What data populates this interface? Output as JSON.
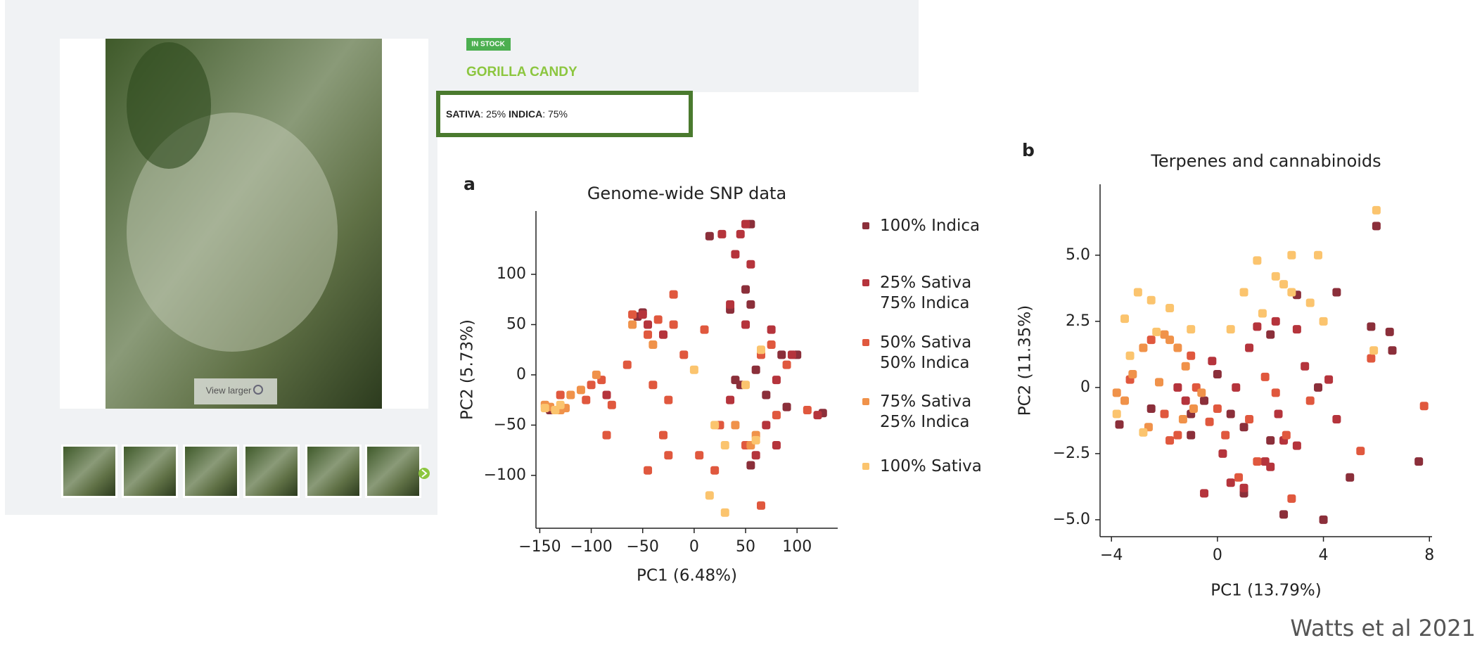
{
  "product": {
    "badge": "IN STOCK",
    "name": "GORILLA CANDY",
    "sativa_label": "SATIVA",
    "sativa_value": ": 25% ",
    "indica_label": "INDICA",
    "indica_value": ": 75%",
    "view_larger": "View larger"
  },
  "credit": "Watts et al 2021",
  "chart_data": [
    {
      "type": "scatter",
      "panel": "a",
      "title": "Genome-wide SNP data",
      "xlabel": "PC1 (6.48%)",
      "ylabel": "PC2 (5.73%)",
      "xlim": [
        -153.7,
        139.5
      ],
      "ylim": [
        -152.6,
        163
      ],
      "xticks": [
        {
          "value": -150,
          "label": "−150"
        },
        {
          "value": -100,
          "label": "−100"
        },
        {
          "value": -50,
          "label": "−50"
        },
        0,
        50,
        100
      ],
      "yticks": [
        {
          "value": -100,
          "label": "−100"
        },
        {
          "value": -50,
          "label": "−50"
        },
        0,
        50,
        100
      ],
      "legend": "right",
      "series": [
        {
          "name": "100% Indica",
          "color": "#8b2f3a",
          "x": [
            55,
            15,
            50,
            35,
            55,
            60,
            45,
            85,
            100,
            125,
            -50,
            -55,
            -140,
            70,
            90,
            40,
            55
          ],
          "values": [
            150,
            138,
            85,
            65,
            70,
            5,
            -10,
            20,
            20,
            -38,
            62,
            58,
            -35,
            -20,
            -32,
            -5,
            -90
          ]
        },
        {
          "name": "25% Sativa\n75% Indica",
          "color": "#b5343c",
          "x": [
            27,
            45,
            50,
            40,
            55,
            35,
            50,
            75,
            -45,
            -30,
            80,
            95,
            70,
            60,
            80,
            120,
            -50,
            35,
            -85
          ],
          "values": [
            140,
            140,
            150,
            120,
            110,
            70,
            50,
            45,
            50,
            40,
            -5,
            20,
            -50,
            -80,
            -70,
            -40,
            60,
            -25,
            -20
          ]
        },
        {
          "name": "50% Sativa\n50% Indica",
          "color": "#e0583e",
          "x": [
            -100,
            -90,
            -80,
            -85,
            -130,
            -105,
            -60,
            -45,
            -20,
            -10,
            -65,
            -40,
            -30,
            -25,
            -45,
            5,
            20,
            25,
            50,
            65,
            80,
            110,
            90,
            10,
            -25,
            -35,
            -20,
            65,
            75
          ],
          "values": [
            -10,
            -5,
            -30,
            -60,
            -20,
            -25,
            60,
            40,
            50,
            20,
            10,
            -10,
            -60,
            -80,
            -95,
            -80,
            -95,
            -50,
            -70,
            -130,
            -40,
            -35,
            10,
            45,
            -25,
            55,
            80,
            20,
            30
          ]
        },
        {
          "name": "75% Sativa\n25% Indica",
          "color": "#f0924a",
          "x": [
            -145,
            -120,
            -110,
            -95,
            -60,
            -40,
            -140,
            -125,
            -130,
            60,
            55,
            40
          ],
          "values": [
            -30,
            -20,
            -15,
            0,
            50,
            30,
            -32,
            -33,
            -35,
            -60,
            -70,
            -50
          ]
        },
        {
          "name": "100% Sativa",
          "color": "#fbc46e",
          "x": [
            -135,
            -145,
            -130,
            0,
            65,
            30,
            15,
            30,
            60,
            20,
            50
          ],
          "values": [
            -35,
            -33,
            -30,
            5,
            25,
            -70,
            -120,
            -137,
            -65,
            -50,
            -10
          ]
        }
      ]
    },
    {
      "type": "scatter",
      "panel": "b",
      "title": "Terpenes and cannabinoids",
      "xlabel": "PC1 (13.79%)",
      "ylabel": "PC2 (11.35%)",
      "xlim": [
        -4.43,
        8.1
      ],
      "ylim": [
        -5.64,
        7.68
      ],
      "xticks": [
        {
          "value": -4,
          "label": "−4"
        },
        0,
        4,
        8
      ],
      "yticks": [
        {
          "value": 5,
          "label": "5.0"
        },
        {
          "value": 2.5,
          "label": "2.5"
        },
        0,
        {
          "value": -2.5,
          "label": "−2.5"
        },
        {
          "value": -5,
          "label": "−5.0"
        }
      ],
      "series": [
        {
          "color": "#8b2f3a",
          "x": [
            0,
            -0.5,
            1,
            2,
            -1,
            3,
            4.5,
            6,
            5.8,
            6.5,
            6.6,
            7.6,
            5,
            4,
            3.8,
            2,
            1,
            2.5,
            -1,
            -2.5,
            0.5,
            -3.7
          ],
          "values": [
            0.5,
            -0.5,
            -1.5,
            -2,
            -1,
            3.5,
            3.6,
            6.1,
            2.3,
            2.1,
            1.4,
            -2.8,
            -3.4,
            -5,
            0,
            2,
            -4,
            -4.8,
            -1.8,
            -0.8,
            -1,
            -1.4
          ]
        },
        {
          "color": "#b5343c",
          "x": [
            1.5,
            2.2,
            3,
            2.5,
            1.8,
            0.5,
            1,
            2,
            -0.5,
            0.2,
            3.3,
            4.2,
            -1.5,
            -1.2,
            0.7,
            3,
            2.3,
            -0.2,
            1.2,
            4.5
          ],
          "values": [
            2.3,
            2.5,
            2.2,
            -2,
            -2.8,
            -3.6,
            -3.8,
            -3,
            -4,
            -2.5,
            0.8,
            0.3,
            0,
            -0.5,
            0,
            -2.2,
            -1,
            1,
            1.5,
            -1.2
          ]
        },
        {
          "color": "#e0583e",
          "x": [
            -2,
            -1.5,
            -0.8,
            0,
            1.2,
            2.6,
            3.5,
            1.5,
            0.8,
            2.8,
            -2.5,
            -1,
            7.8,
            5.4,
            5.8,
            1.8,
            0.3,
            -3.3,
            -1.8,
            2.2,
            -0.3
          ],
          "values": [
            -1,
            -1.8,
            0,
            -0.8,
            -1.2,
            -1.8,
            -0.5,
            -2.8,
            -3.4,
            -4.2,
            1.8,
            1.2,
            -0.7,
            -2.4,
            1.1,
            0.4,
            -1.8,
            0.3,
            -2,
            -0.2,
            -1.3
          ]
        },
        {
          "color": "#f0924a",
          "x": [
            -3.2,
            -2.8,
            -2.2,
            -1.8,
            -1.2,
            -0.6,
            -3.5,
            -2.6,
            -1.5,
            -0.9,
            -3.8,
            -2,
            -1.3
          ],
          "values": [
            0.5,
            1.5,
            0.2,
            1.8,
            0.8,
            -0.2,
            -0.5,
            -1.5,
            1.5,
            -0.8,
            -0.2,
            2,
            -1.2
          ]
        },
        {
          "color": "#fbc46e",
          "x": [
            -3,
            -2.5,
            -3.5,
            -1.8,
            -2.3,
            1.5,
            2.8,
            3.8,
            2.2,
            2.5,
            1,
            0.5,
            1.7,
            3.5,
            4,
            6,
            5.9,
            -3.3,
            -2.8,
            -3.8,
            -1,
            2.8
          ],
          "values": [
            3.6,
            3.3,
            2.6,
            3,
            2.1,
            4.8,
            5,
            5,
            4.2,
            3.9,
            3.6,
            2.2,
            2.8,
            3.2,
            2.5,
            6.7,
            1.4,
            1.2,
            -1.7,
            -1,
            2.2,
            3.6
          ]
        }
      ]
    }
  ]
}
